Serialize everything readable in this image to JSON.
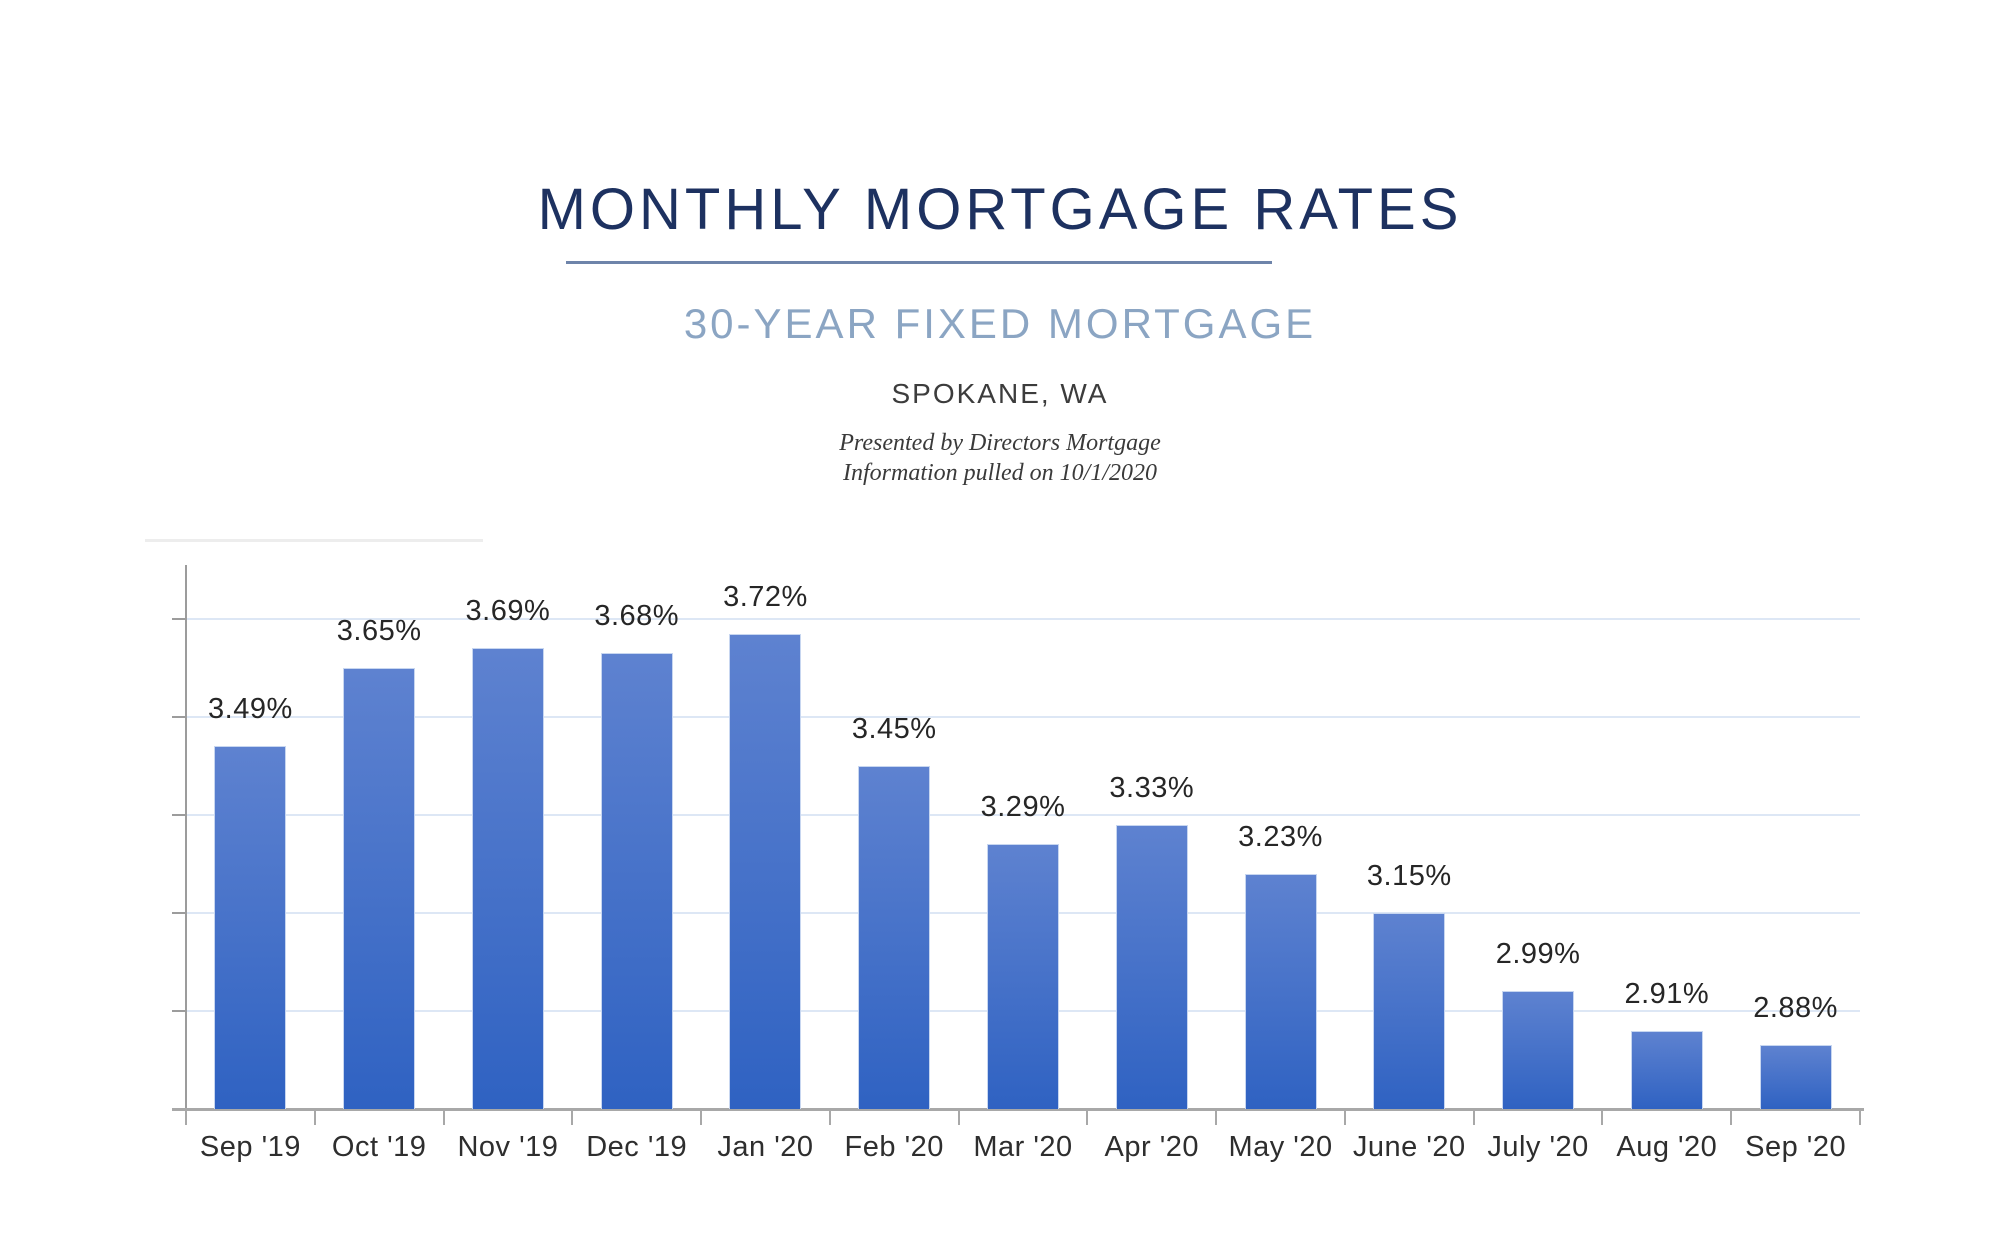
{
  "header": {
    "title": "MONTHLY MORTGAGE RATES",
    "subtitle": "30-YEAR FIXED MORTGAGE",
    "location": "SPOKANE, WA",
    "credit_line1": "Presented by Directors Mortgage",
    "credit_line2": "Information pulled on 10/1/2020"
  },
  "colors": {
    "title_text": "#1d3160",
    "subtitle_text": "#8ba5c3",
    "divider": "#6e84aa",
    "credit_text": "#3a3a3a",
    "bar_top": "#5e82d0",
    "bar_bottom": "#2f62c2",
    "gridline": "#dde7f5",
    "axis": "#9c9c9c",
    "value_label": "#262626",
    "category_label": "#2e2e2e"
  },
  "chart_data": {
    "type": "bar",
    "title": "MONTHLY MORTGAGE RATES",
    "subtitle": "30-YEAR FIXED MORTGAGE",
    "categories": [
      "Sep '19",
      "Oct '19",
      "Nov '19",
      "Dec '19",
      "Jan '20",
      "Feb '20",
      "Mar '20",
      "Apr '20",
      "May '20",
      "June '20",
      "July '20",
      "Aug '20",
      "Sep '20"
    ],
    "values": [
      3.49,
      3.65,
      3.69,
      3.68,
      3.72,
      3.45,
      3.29,
      3.33,
      3.23,
      3.15,
      2.99,
      2.91,
      2.88
    ],
    "data_labels": [
      "3.49%",
      "3.65%",
      "3.69%",
      "3.68%",
      "3.72%",
      "3.45%",
      "3.29%",
      "3.33%",
      "3.23%",
      "3.15%",
      "2.99%",
      "2.91%",
      "2.88%"
    ],
    "unit": "%",
    "xlabel": "",
    "ylabel": "",
    "ylim": [
      2.75,
      3.86
    ],
    "gridlines_at": [
      2.95,
      3.15,
      3.35,
      3.55,
      3.75
    ],
    "y_axis_value_labels_visible": false,
    "data_labels_visible": true,
    "grid": true,
    "legend": "none"
  }
}
